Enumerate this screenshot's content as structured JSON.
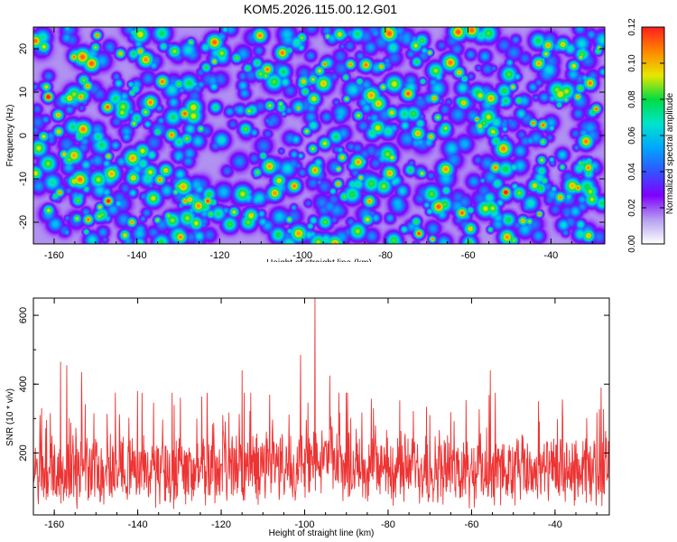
{
  "title": "KOM5.2026.115.00.12.G01",
  "chart_data": [
    {
      "type": "heatmap",
      "name": "spectrogram",
      "xlabel": "Height of straight line (km)",
      "ylabel": "Frequency (Hz)",
      "xlim": [
        -165,
        -27
      ],
      "ylim": [
        -25,
        25
      ],
      "xticks": [
        -160,
        -140,
        -120,
        -100,
        -80,
        -60,
        -40
      ],
      "yticks": [
        -20,
        -10,
        0,
        10,
        20
      ],
      "xtick_labels": [
        "-160",
        "-140",
        "-120",
        "-100",
        "-80",
        "-60",
        "-40"
      ],
      "ytick_labels": [
        "-20",
        "-10",
        "0",
        "10",
        "20"
      ],
      "colorbar": {
        "label": "Normalized spectral amplitude",
        "range": [
          0,
          0.12
        ],
        "ticks": [
          0.0,
          0.02,
          0.04,
          0.06,
          0.08,
          0.1,
          0.12
        ],
        "tick_labels": [
          "0.00",
          "0.02",
          "0.04",
          "0.06",
          "0.08",
          "0.10",
          "0.12"
        ],
        "colormap": [
          "#ffffff",
          "#b59ff0",
          "#8000ff",
          "#3355ff",
          "#00a8ff",
          "#00e5cc",
          "#00dd44",
          "#e8e800",
          "#ff8800",
          "#ff2020"
        ]
      },
      "hotspots": [
        {
          "x": -161.5,
          "y": 9.0,
          "v": 0.115
        },
        {
          "x": -152.0,
          "y": 11.5,
          "v": 0.09
        },
        {
          "x": -147.0,
          "y": -15.0,
          "v": 0.11
        },
        {
          "x": -159.0,
          "y": 1.0,
          "v": 0.085
        },
        {
          "x": -138.0,
          "y": 5.5,
          "v": 0.075
        },
        {
          "x": -123.0,
          "y": -15.0,
          "v": 0.1
        },
        {
          "x": -130.0,
          "y": 12.0,
          "v": 0.07
        },
        {
          "x": -108.0,
          "y": 7.0,
          "v": 0.075
        },
        {
          "x": -96.0,
          "y": 15.0,
          "v": 0.08
        },
        {
          "x": -88.5,
          "y": 16.5,
          "v": 0.09
        },
        {
          "x": -90.0,
          "y": -14.0,
          "v": 0.07
        },
        {
          "x": -72.0,
          "y": -22.5,
          "v": 0.1
        },
        {
          "x": -62.0,
          "y": 8.0,
          "v": 0.065
        },
        {
          "x": -51.0,
          "y": -13.0,
          "v": 0.115
        },
        {
          "x": -42.0,
          "y": 2.5,
          "v": 0.095
        },
        {
          "x": -33.0,
          "y": 11.0,
          "v": 0.07
        },
        {
          "x": -78.5,
          "y": -5.0,
          "v": 0.08
        },
        {
          "x": -116.0,
          "y": 18.0,
          "v": 0.07
        }
      ]
    },
    {
      "type": "line",
      "name": "snr",
      "xlabel": "Height of straight line (km)",
      "ylabel": "SNR (10 * v/v)",
      "xlim": [
        -165,
        -27
      ],
      "ylim": [
        20,
        650
      ],
      "xticks": [
        -160,
        -140,
        -120,
        -100,
        -80,
        -60,
        -40
      ],
      "yticks": [
        200,
        400,
        600
      ],
      "xtick_labels": [
        "-160",
        "-140",
        "-120",
        "-100",
        "-80",
        "-60",
        "-40"
      ],
      "ytick_labels": [
        "200",
        "400",
        "600"
      ],
      "color": "#ee3333",
      "baseline_mean": 140,
      "notable_peaks": [
        {
          "x": -97.5,
          "y": 650
        },
        {
          "x": -101.0,
          "y": 485
        },
        {
          "x": -158.5,
          "y": 465
        },
        {
          "x": -157.0,
          "y": 455
        },
        {
          "x": -153.5,
          "y": 435
        },
        {
          "x": -115.0,
          "y": 440
        },
        {
          "x": -94.0,
          "y": 425
        },
        {
          "x": -55.5,
          "y": 440
        },
        {
          "x": -29.0,
          "y": 390
        },
        {
          "x": -163.0,
          "y": 330
        },
        {
          "x": -140.0,
          "y": 380
        },
        {
          "x": -83.5,
          "y": 330
        },
        {
          "x": -70.0,
          "y": 310
        },
        {
          "x": -44.0,
          "y": 350
        }
      ]
    }
  ]
}
